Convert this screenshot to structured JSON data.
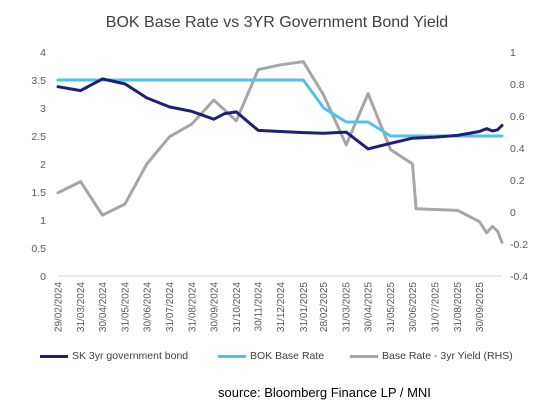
{
  "chart_data": {
    "type": "line",
    "title": "BOK Base Rate vs 3YR Government Bond Yield",
    "source": "source: Bloomberg Finance LP / MNI",
    "x_start": "2024-02-29",
    "x_end": "2025-10-31",
    "x_tick_labels": [
      "29/02/2024",
      "31/03/2024",
      "30/04/2024",
      "31/05/2024",
      "30/06/2024",
      "31/07/2024",
      "31/08/2024",
      "30/09/2024",
      "31/10/2024",
      "30/11/2024",
      "31/12/2024",
      "31/01/2025",
      "28/02/2025",
      "31/03/2025",
      "30/04/2025",
      "31/05/2025",
      "30/06/2025",
      "31/07/2025",
      "31/08/2025",
      "30/09/2025"
    ],
    "y_left": {
      "min": 0,
      "max": 4,
      "ticks": [
        "0",
        "0.5",
        "1",
        "1.5",
        "2",
        "2.5",
        "3",
        "3.5",
        "4"
      ]
    },
    "y_right": {
      "min": -0.4,
      "max": 1.0,
      "ticks": [
        "-0.4",
        "-0.2",
        "0",
        "0.2",
        "0.4",
        "0.6",
        "0.8",
        "1"
      ]
    },
    "grid": false,
    "legend_position": "bottom",
    "series": [
      {
        "name": "SK 3yr government bond",
        "axis": "left",
        "color": "#1f1f7a",
        "points": [
          [
            "2024-02-29",
            3.38
          ],
          [
            "2024-03-31",
            3.31
          ],
          [
            "2024-04-30",
            3.52
          ],
          [
            "2024-05-31",
            3.43
          ],
          [
            "2024-06-30",
            3.18
          ],
          [
            "2024-07-31",
            3.02
          ],
          [
            "2024-08-31",
            2.94
          ],
          [
            "2024-09-30",
            2.8
          ],
          [
            "2024-10-15",
            2.9
          ],
          [
            "2024-10-31",
            2.93
          ],
          [
            "2024-11-30",
            2.6
          ],
          [
            "2024-12-31",
            2.58
          ],
          [
            "2025-01-31",
            2.56
          ],
          [
            "2025-02-28",
            2.55
          ],
          [
            "2025-03-31",
            2.57
          ],
          [
            "2025-04-30",
            2.27
          ],
          [
            "2025-05-31",
            2.37
          ],
          [
            "2025-06-30",
            2.46
          ],
          [
            "2025-07-31",
            2.48
          ],
          [
            "2025-08-31",
            2.51
          ],
          [
            "2025-09-30",
            2.58
          ],
          [
            "2025-10-10",
            2.63
          ],
          [
            "2025-10-18",
            2.59
          ],
          [
            "2025-10-25",
            2.61
          ],
          [
            "2025-10-31",
            2.69
          ]
        ]
      },
      {
        "name": "BOK Base Rate",
        "axis": "left",
        "color": "#4fc3e8",
        "points": [
          [
            "2024-02-29",
            3.5
          ],
          [
            "2025-01-31",
            3.5
          ],
          [
            "2025-02-28",
            3.0
          ],
          [
            "2025-03-31",
            2.75
          ],
          [
            "2025-04-30",
            2.75
          ],
          [
            "2025-05-31",
            2.5
          ],
          [
            "2025-06-30",
            2.5
          ],
          [
            "2025-07-02",
            2.5
          ],
          [
            "2025-07-02",
            2.5
          ],
          [
            "2025-10-31",
            2.5
          ]
        ]
      },
      {
        "name": "Base Rate - 3yr Yield (RHS)",
        "axis": "right",
        "color": "#a6a6a6",
        "points": [
          [
            "2024-02-29",
            0.12
          ],
          [
            "2024-03-31",
            0.19
          ],
          [
            "2024-04-30",
            -0.02
          ],
          [
            "2024-05-31",
            0.05
          ],
          [
            "2024-06-30",
            0.3
          ],
          [
            "2024-07-31",
            0.47
          ],
          [
            "2024-08-31",
            0.55
          ],
          [
            "2024-09-30",
            0.7
          ],
          [
            "2024-10-31",
            0.57
          ],
          [
            "2024-11-30",
            0.89
          ],
          [
            "2024-12-31",
            0.92
          ],
          [
            "2025-01-31",
            0.94
          ],
          [
            "2025-02-28",
            0.73
          ],
          [
            "2025-03-31",
            0.42
          ],
          [
            "2025-04-30",
            0.74
          ],
          [
            "2025-05-31",
            0.39
          ],
          [
            "2025-06-30",
            0.3
          ],
          [
            "2025-07-05",
            0.02
          ],
          [
            "2025-08-31",
            0.01
          ],
          [
            "2025-09-30",
            -0.06
          ],
          [
            "2025-10-10",
            -0.13
          ],
          [
            "2025-10-18",
            -0.09
          ],
          [
            "2025-10-25",
            -0.12
          ],
          [
            "2025-10-31",
            -0.19
          ]
        ]
      }
    ]
  }
}
